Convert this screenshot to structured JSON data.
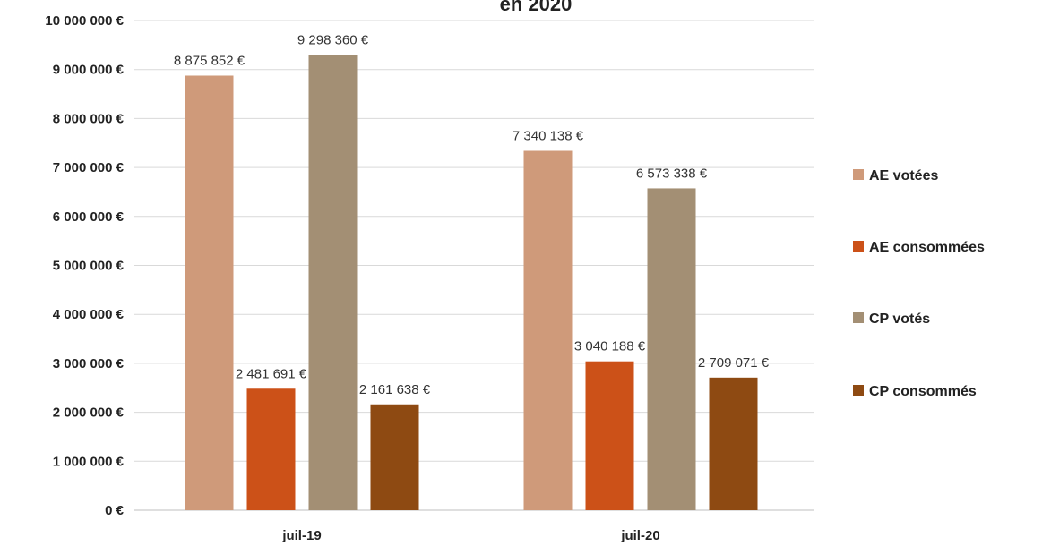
{
  "chart_data": {
    "type": "bar",
    "title": "en 2020",
    "categories": [
      "juil-19",
      "juil-20"
    ],
    "series": [
      {
        "name": "AE votées",
        "color": "#CF9A7A",
        "values": [
          8875852,
          7340138
        ],
        "labels": [
          "8 875 852 €",
          "7 340 138 €"
        ]
      },
      {
        "name": "AE consommées",
        "color": "#CC5118",
        "values": [
          2481691,
          3040188
        ],
        "labels": [
          "2 481 691 €",
          "3 040 188 €"
        ]
      },
      {
        "name": "CP votés",
        "color": "#A38F74",
        "values": [
          9298360,
          6573338
        ],
        "labels": [
          "9 298 360 €",
          "6 573 338 €"
        ]
      },
      {
        "name": "CP consommés",
        "color": "#8E4A12",
        "values": [
          2161638,
          2709071
        ],
        "labels": [
          "2 161 638 €",
          "2 709 071 €"
        ]
      }
    ],
    "ylim": [
      0,
      10000000
    ],
    "yticks": [
      {
        "value": 0,
        "label": "0 €"
      },
      {
        "value": 1000000,
        "label": "1 000 000 €"
      },
      {
        "value": 2000000,
        "label": "2 000 000 €"
      },
      {
        "value": 3000000,
        "label": "3 000 000 €"
      },
      {
        "value": 4000000,
        "label": "4 000 000 €"
      },
      {
        "value": 5000000,
        "label": "5 000 000 €"
      },
      {
        "value": 6000000,
        "label": "6 000 000 €"
      },
      {
        "value": 7000000,
        "label": "7 000 000 €"
      },
      {
        "value": 8000000,
        "label": "8 000 000 €"
      },
      {
        "value": 9000000,
        "label": "9 000 000 €"
      },
      {
        "value": 10000000,
        "label": "10 000 000 €"
      }
    ],
    "grid": true,
    "legend_position": "right"
  }
}
